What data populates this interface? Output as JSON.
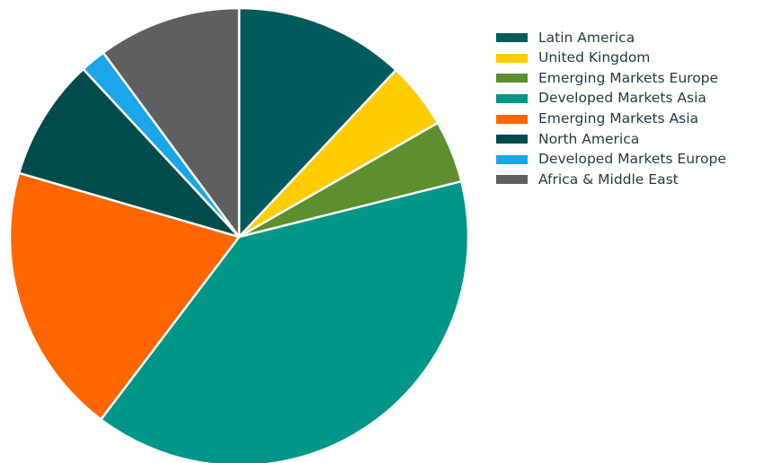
{
  "chart_data": {
    "type": "pie",
    "title": "",
    "legend_position": "right",
    "slices": [
      {
        "label": "Latin America",
        "value": 12.0,
        "color": "#005c5c"
      },
      {
        "label": "United Kingdom",
        "value": 4.7,
        "color": "#ffcc00"
      },
      {
        "label": "Emerging Markets Europe",
        "value": 4.4,
        "color": "#5e8e2e"
      },
      {
        "label": "Developed Markets Asia",
        "value": 39.2,
        "color": "#009688"
      },
      {
        "label": "Emerging Markets Asia",
        "value": 19.2,
        "color": "#ff6600"
      },
      {
        "label": "North America",
        "value": 8.6,
        "color": "#004c4c"
      },
      {
        "label": "Developed Markets Europe",
        "value": 1.8,
        "color": "#1aa6e8"
      },
      {
        "label": "Africa & Middle East",
        "value": 10.1,
        "color": "#5f5f5f"
      }
    ]
  }
}
